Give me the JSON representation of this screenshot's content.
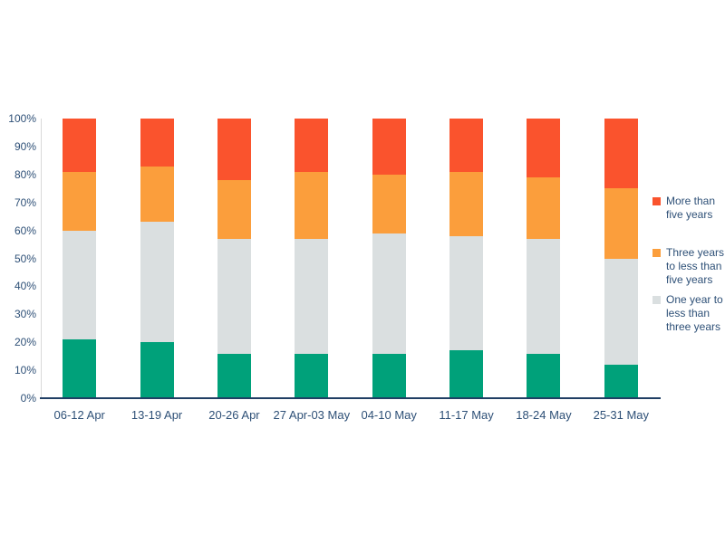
{
  "chart_data": {
    "type": "bar",
    "subtype": "stacked-percent",
    "title": "",
    "xlabel": "",
    "ylabel": "",
    "ylim": [
      0,
      100
    ],
    "grid": false,
    "legend_position": "right",
    "categories": [
      "06-12 Apr",
      "13-19 Apr",
      "20-26 Apr",
      "27 Apr-03 May",
      "04-10 May",
      "11-17 May",
      "18-24 May",
      "25-31 May"
    ],
    "y_ticks": [
      "0%",
      "10%",
      "20%",
      "30%",
      "40%",
      "50%",
      "60%",
      "70%",
      "80%",
      "90%",
      "100%"
    ],
    "series": [
      {
        "name": "",
        "color": "#00A17A",
        "values": [
          21,
          20,
          16,
          16,
          16,
          17,
          16,
          12
        ]
      },
      {
        "name": "One year to less than three years",
        "color": "#DADFE0",
        "values": [
          39,
          43,
          41,
          41,
          43,
          41,
          41,
          38
        ]
      },
      {
        "name": "Three years to less than five years",
        "color": "#FB9E3C",
        "values": [
          21,
          20,
          21,
          24,
          21,
          23,
          22,
          25
        ]
      },
      {
        "name": "More than five years",
        "color": "#FA532D",
        "values": [
          19,
          17,
          22,
          19,
          20,
          19,
          21,
          25
        ]
      }
    ],
    "legend": [
      {
        "label": "More than five years",
        "color": "#FA532D"
      },
      {
        "label": "Three years to less than five years",
        "color": "#FB9E3C"
      },
      {
        "label": "One year to less than three years",
        "color": "#DADFE0"
      }
    ]
  },
  "colors": {
    "axis_text": "#2E5077",
    "x_axis_line": "#203E64",
    "y_axis_line": "#D9D9D9",
    "background": "#FFFFFF"
  }
}
